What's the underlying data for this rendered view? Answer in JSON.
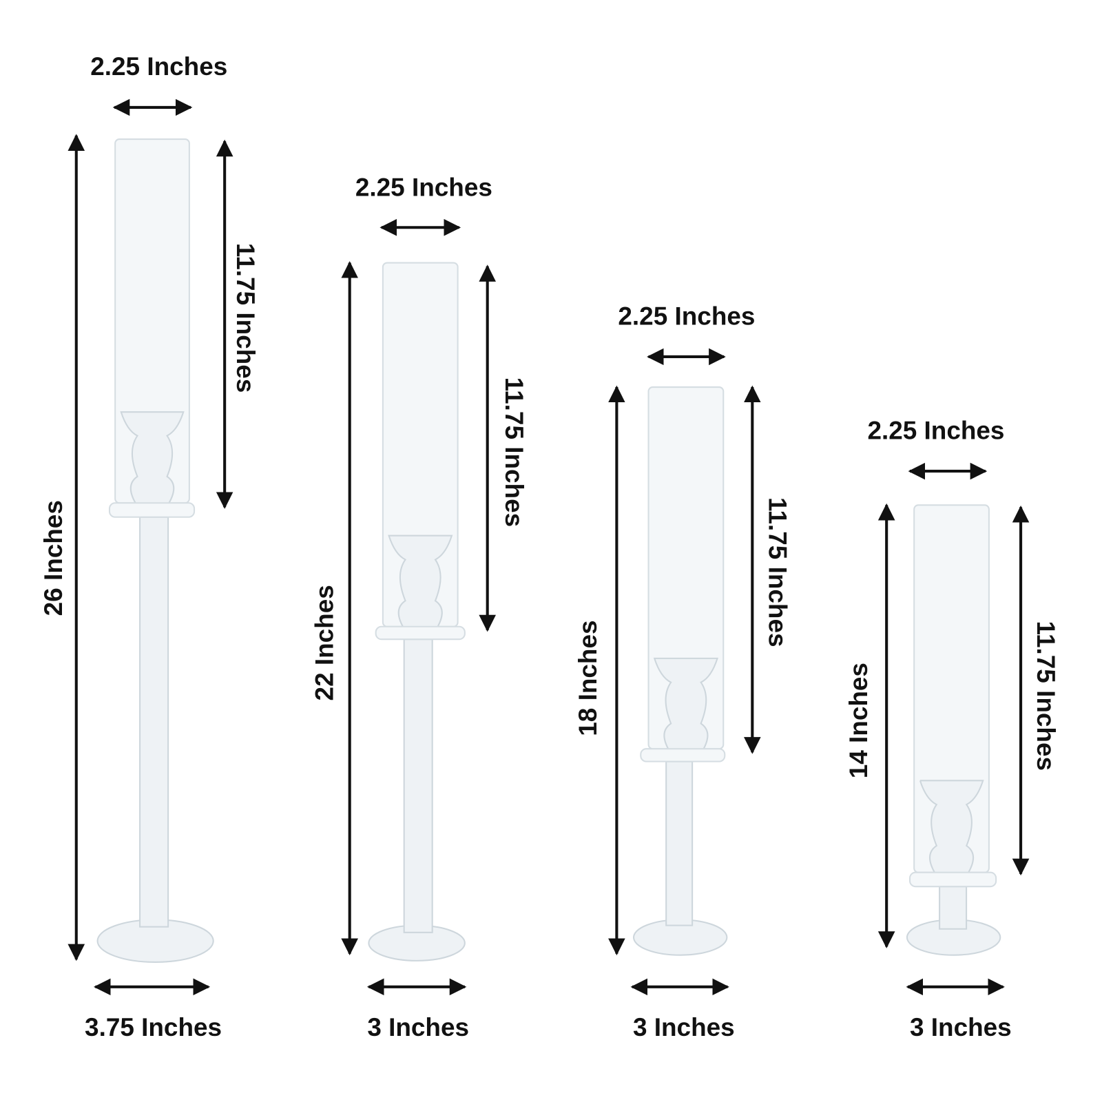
{
  "items": [
    {
      "top_width": "2.25 Inches",
      "shade_height": "11.75 Inches",
      "total_height": "26 Inches",
      "base_width": "3.75 Inches"
    },
    {
      "top_width": "2.25 Inches",
      "shade_height": "11.75 Inches",
      "total_height": "22 Inches",
      "base_width": "3 Inches"
    },
    {
      "top_width": "2.25 Inches",
      "shade_height": "11.75 Inches",
      "total_height": "18 Inches",
      "base_width": "3 Inches"
    },
    {
      "top_width": "2.25 Inches",
      "shade_height": "11.75 Inches",
      "total_height": "14 Inches",
      "base_width": "3 Inches"
    }
  ]
}
